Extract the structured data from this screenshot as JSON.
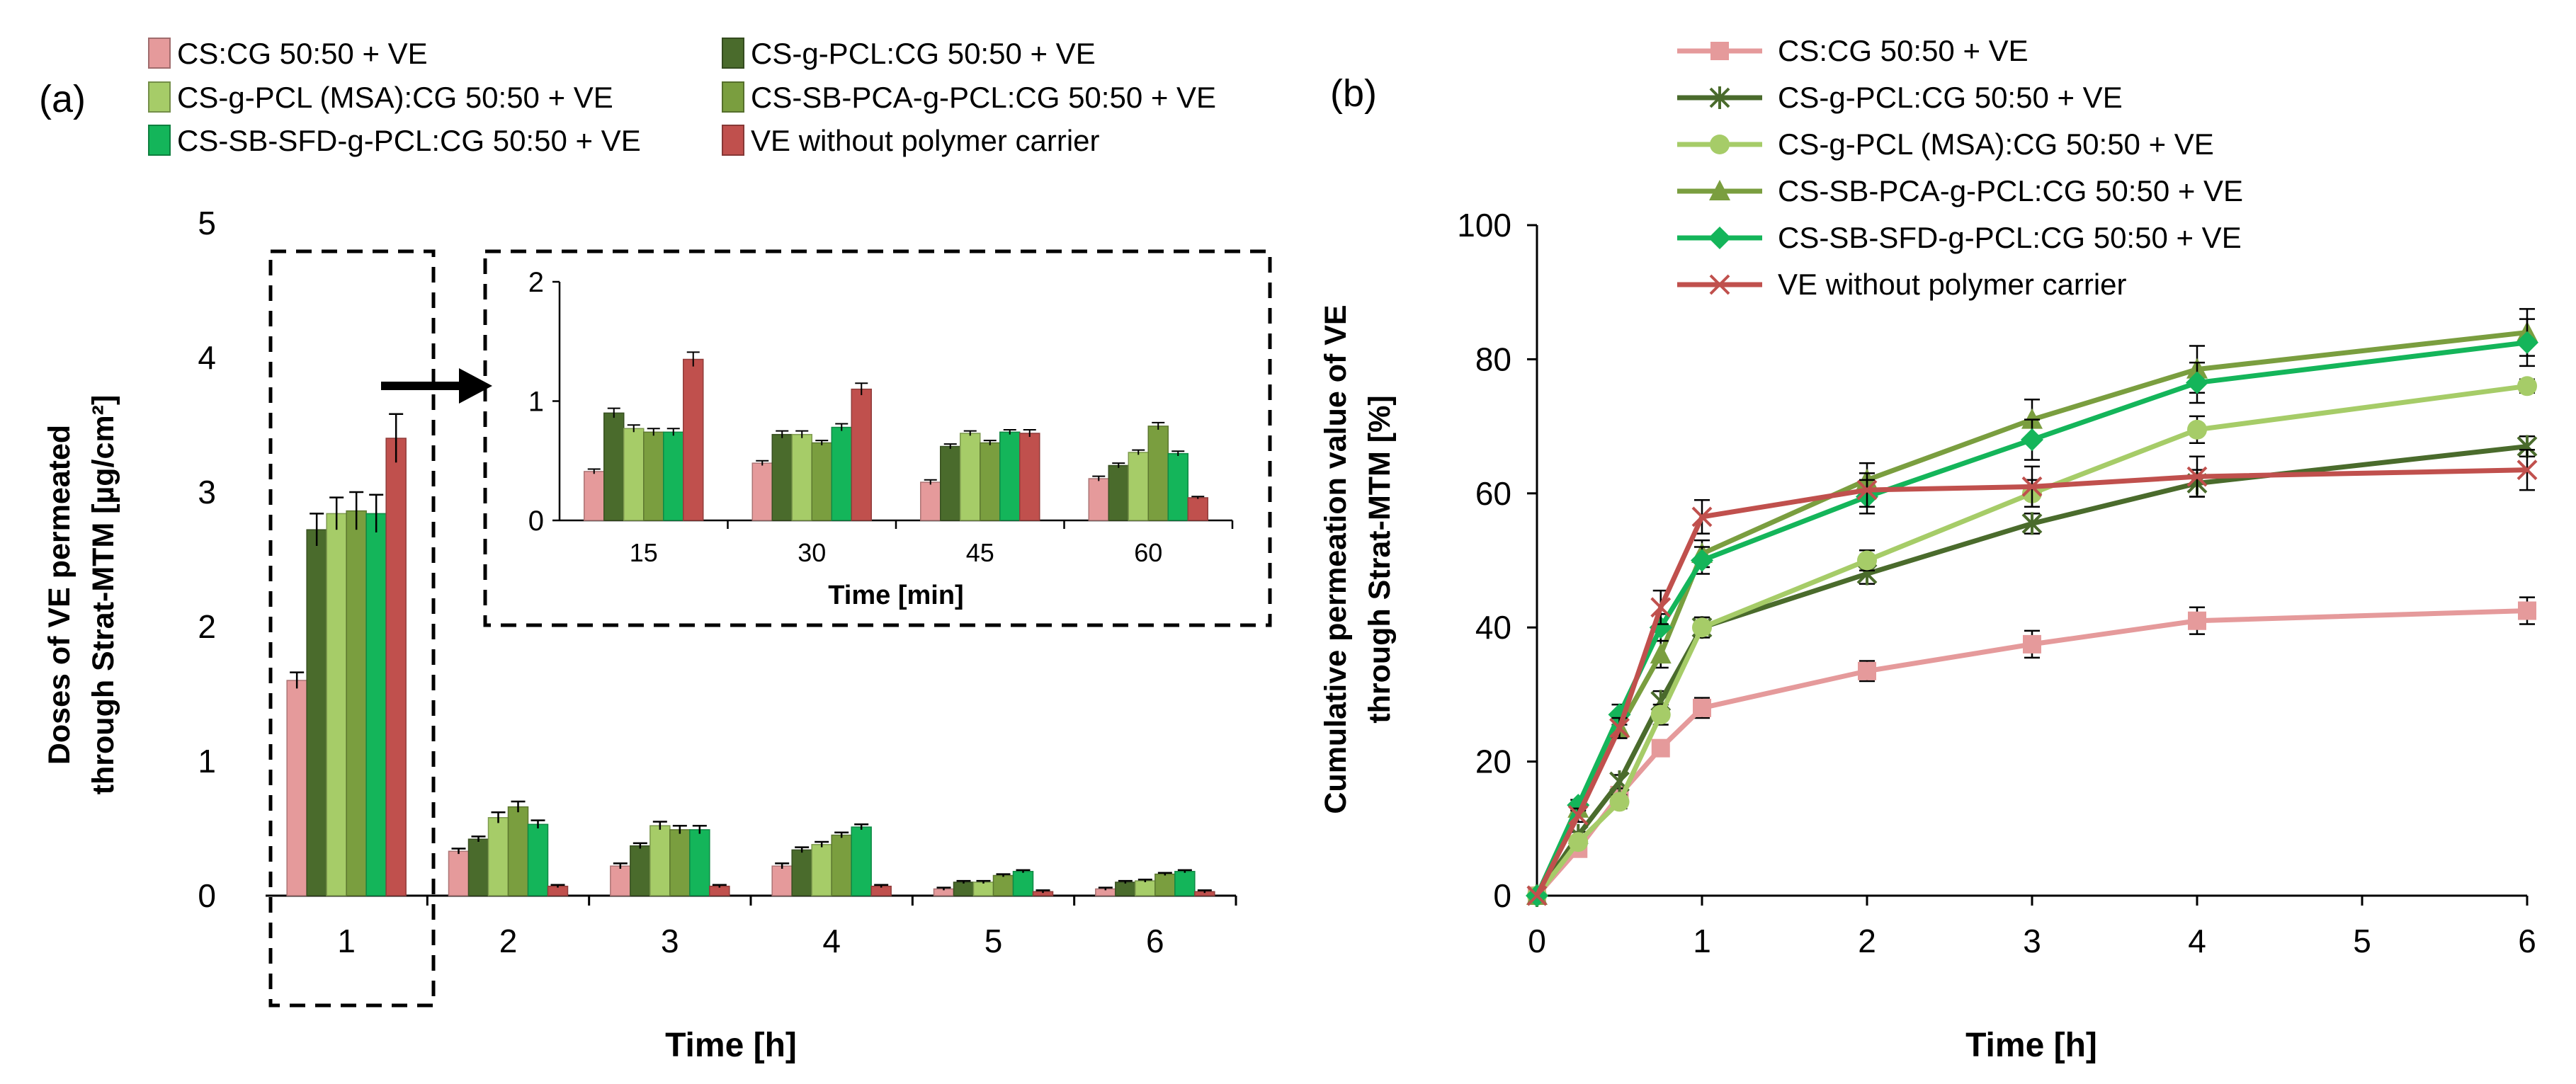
{
  "colors": {
    "cs_cg": "#E59A9B",
    "cs_g_pcl": "#4A6B2C",
    "cs_g_pcl_msa": "#A6CC68",
    "cs_sb_pca": "#7A9E3F",
    "cs_sb_sfd": "#14B55A",
    "ve_only": "#C0504D"
  },
  "chart_data": [
    {
      "id": "a",
      "type": "bar",
      "panel_label": "(a)",
      "xlabel": "Time [h]",
      "ylabel_line1": "Doses of VE permeated",
      "ylabel_line2": "through Strat-MTM [µg/cm²]",
      "ylim": [
        0,
        5
      ],
      "yticks": [
        "0",
        "1",
        "2",
        "3",
        "4",
        "5"
      ],
      "categories": [
        "1",
        "2",
        "3",
        "4",
        "5",
        "6"
      ],
      "legend": [
        "CS:CG 50:50 + VE",
        "CS-g-PCL:CG 50:50 + VE",
        "CS-g-PCL (MSA):CG 50:50 + VE",
        "CS-SB-PCA-g-PCL:CG 50:50 + VE",
        "CS-SB-SFD-g-PCL:CG 50:50 + VE",
        "VE without polymer carrier"
      ],
      "series": [
        {
          "name": "CS:CG 50:50 + VE",
          "color_key": "cs_cg",
          "values": [
            1.6,
            0.33,
            0.22,
            0.22,
            0.05,
            0.05
          ],
          "errors": [
            0.06,
            0.02,
            0.02,
            0.02,
            0.01,
            0.01
          ]
        },
        {
          "name": "CS-g-PCL:CG 50:50 + VE",
          "color_key": "cs_g_pcl",
          "values": [
            2.72,
            0.42,
            0.37,
            0.34,
            0.1,
            0.1
          ],
          "errors": [
            0.12,
            0.02,
            0.02,
            0.02,
            0.01,
            0.01
          ]
        },
        {
          "name": "CS-g-PCL (MSA):CG 50:50 + VE",
          "color_key": "cs_g_pcl_msa",
          "values": [
            2.84,
            0.58,
            0.52,
            0.38,
            0.1,
            0.11
          ],
          "errors": [
            0.12,
            0.04,
            0.03,
            0.02,
            0.01,
            0.01
          ]
        },
        {
          "name": "CS-SB-PCA-g-PCL:CG 50:50 + VE",
          "color_key": "cs_sb_pca",
          "values": [
            2.86,
            0.66,
            0.49,
            0.45,
            0.15,
            0.16
          ],
          "errors": [
            0.14,
            0.04,
            0.03,
            0.02,
            0.01,
            0.01
          ]
        },
        {
          "name": "CS-SB-SFD-g-PCL:CG 50:50 + VE",
          "color_key": "cs_sb_sfd",
          "values": [
            2.84,
            0.53,
            0.49,
            0.51,
            0.18,
            0.18
          ],
          "errors": [
            0.14,
            0.03,
            0.03,
            0.02,
            0.01,
            0.01
          ]
        },
        {
          "name": "VE without polymer carrier",
          "color_key": "ve_only",
          "values": [
            3.4,
            0.07,
            0.07,
            0.07,
            0.03,
            0.03
          ],
          "errors": [
            0.18,
            0.01,
            0.01,
            0.01,
            0.01,
            0.01
          ]
        }
      ],
      "inset": {
        "xlabel": "Time [min]",
        "ylim": [
          0,
          2
        ],
        "yticks": [
          "0",
          "1",
          "2"
        ],
        "categories": [
          "15",
          "30",
          "45",
          "60"
        ],
        "series": [
          {
            "color_key": "cs_cg",
            "values": [
              0.41,
              0.48,
              0.32,
              0.35
            ],
            "errors": [
              0.02,
              0.02,
              0.02,
              0.02
            ]
          },
          {
            "color_key": "cs_g_pcl",
            "values": [
              0.9,
              0.72,
              0.62,
              0.46
            ],
            "errors": [
              0.04,
              0.03,
              0.02,
              0.02
            ]
          },
          {
            "color_key": "cs_g_pcl_msa",
            "values": [
              0.77,
              0.72,
              0.73,
              0.57
            ],
            "errors": [
              0.03,
              0.03,
              0.02,
              0.02
            ]
          },
          {
            "color_key": "cs_sb_pca",
            "values": [
              0.74,
              0.65,
              0.65,
              0.79
            ],
            "errors": [
              0.03,
              0.02,
              0.02,
              0.03
            ]
          },
          {
            "color_key": "cs_sb_sfd",
            "values": [
              0.74,
              0.78,
              0.74,
              0.56
            ],
            "errors": [
              0.03,
              0.03,
              0.02,
              0.02
            ]
          },
          {
            "color_key": "ve_only",
            "values": [
              1.35,
              1.1,
              0.73,
              0.19
            ],
            "errors": [
              0.06,
              0.05,
              0.03,
              0.01
            ]
          }
        ]
      }
    },
    {
      "id": "b",
      "type": "line",
      "panel_label": "(b)",
      "xlabel": "Time [h]",
      "ylabel_line1": "Cumulative permeation value of VE",
      "ylabel_line2": "through Strat-MTM  [%]",
      "xlim": [
        0,
        6
      ],
      "ylim": [
        0,
        100
      ],
      "xticks": [
        "0",
        "1",
        "2",
        "3",
        "4",
        "5",
        "6"
      ],
      "yticks": [
        "0",
        "20",
        "40",
        "60",
        "80",
        "100"
      ],
      "x": [
        0,
        0.25,
        0.5,
        0.75,
        1,
        2,
        3,
        4,
        6
      ],
      "series": [
        {
          "name": "CS:CG 50:50 + VE",
          "color_key": "cs_cg",
          "marker": "square",
          "values": [
            0,
            7,
            15,
            22,
            28,
            33.5,
            37.5,
            41,
            42.5
          ],
          "errors": [
            0,
            0.5,
            0.8,
            1,
            1.5,
            1.5,
            2,
            2,
            2
          ]
        },
        {
          "name": "CS-g-PCL:CG 50:50 + VE",
          "color_key": "cs_g_pcl",
          "marker": "star",
          "values": [
            0,
            9,
            17,
            29,
            40,
            48,
            55.5,
            61.5,
            67
          ],
          "errors": [
            0,
            0.5,
            1,
            1.5,
            1.5,
            1.5,
            1.5,
            2,
            1.5
          ]
        },
        {
          "name": "CS-g-PCL (MSA):CG 50:50 + VE",
          "color_key": "cs_g_pcl_msa",
          "marker": "circle",
          "values": [
            0,
            8,
            14,
            27,
            40,
            50,
            60,
            69.5,
            76
          ],
          "errors": [
            0,
            0.5,
            1,
            1.5,
            1.5,
            1.5,
            2,
            2,
            1
          ]
        },
        {
          "name": "CS-SB-PCA-g-PCL:CG 50:50 + VE",
          "color_key": "cs_sb_pca",
          "marker": "triangle",
          "values": [
            0,
            13,
            25,
            36,
            51,
            62,
            71,
            78.5,
            84
          ],
          "errors": [
            0,
            0.8,
            1.5,
            2,
            2,
            2.5,
            3,
            3.5,
            3.5
          ]
        },
        {
          "name": "CS-SB-SFD-g-PCL:CG 50:50 + VE",
          "color_key": "cs_sb_sfd",
          "marker": "diamond",
          "values": [
            0,
            13.5,
            27,
            40,
            50,
            59.5,
            68,
            76.5,
            82.5
          ],
          "errors": [
            0,
            0.8,
            1.5,
            2,
            2,
            2.5,
            3,
            3,
            3.5
          ]
        },
        {
          "name": "VE without polymer carrier",
          "color_key": "ve_only",
          "marker": "x",
          "values": [
            0,
            12,
            25,
            43,
            56.5,
            60.5,
            61,
            62.5,
            63.5
          ],
          "errors": [
            0,
            1,
            1.5,
            2.5,
            2.5,
            2.5,
            3,
            3,
            3
          ]
        }
      ]
    }
  ]
}
